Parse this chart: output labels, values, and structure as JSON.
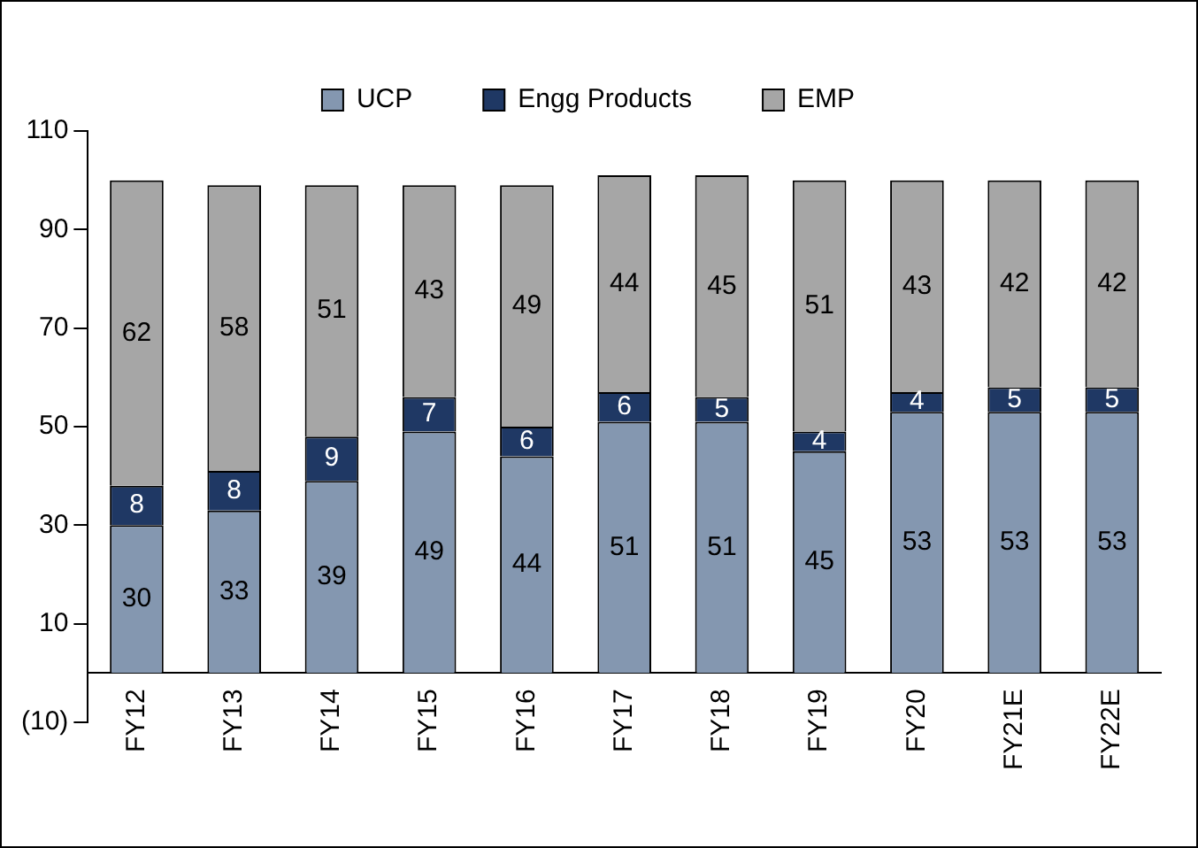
{
  "chart_data": {
    "type": "bar",
    "stacked": true,
    "categories": [
      "FY12",
      "FY13",
      "FY14",
      "FY15",
      "FY16",
      "FY17",
      "FY18",
      "FY19",
      "FY20",
      "FY21E",
      "FY22E"
    ],
    "series": [
      {
        "name": "UCP",
        "color": "#8497b0",
        "values": [
          30,
          33,
          39,
          49,
          44,
          51,
          51,
          45,
          53,
          53,
          53
        ]
      },
      {
        "name": "Engg Products",
        "color": "#1f3864",
        "values": [
          8,
          8,
          9,
          7,
          6,
          6,
          5,
          4,
          4,
          5,
          5
        ]
      },
      {
        "name": "EMP",
        "color": "#a6a6a6",
        "values": [
          62,
          58,
          51,
          43,
          49,
          44,
          45,
          51,
          43,
          42,
          42
        ]
      }
    ],
    "ylim": [
      -10,
      110
    ],
    "yticks": [
      {
        "value": -10,
        "label": "(10)"
      },
      10,
      30,
      50,
      70,
      90,
      110
    ],
    "grid": false,
    "legend": "top",
    "data_labels": true
  }
}
